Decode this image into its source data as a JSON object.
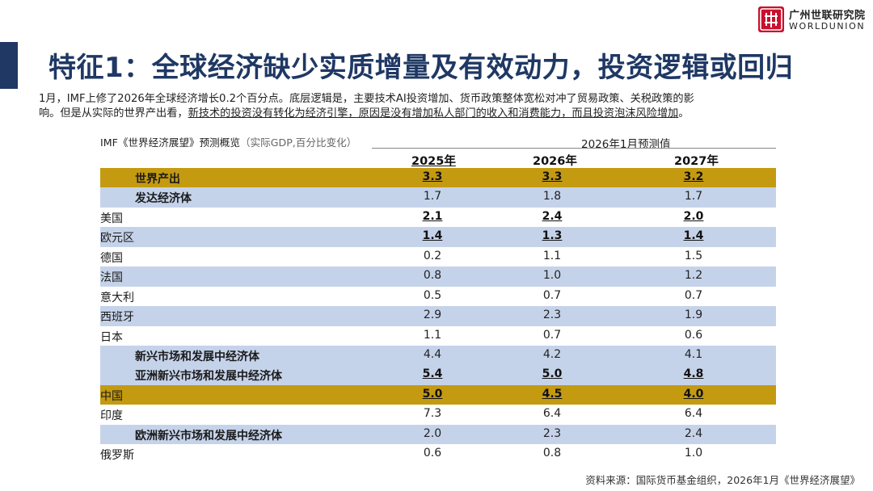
{
  "logo": {
    "name_cn": "广州世联研究院",
    "name_en": "WORLDUNION",
    "brand_color": "#c8102e"
  },
  "title": "特征1：全球经济缺少实质增量及有效动力，投资逻辑或回归",
  "description": {
    "line1": "1月，IMF上修了2026年全球经济增长0.2个百分点。底层逻辑是，主要技术AI投资增加、货币政策整体宽松对冲了贸易政策、关税政策的影",
    "line2_plain": "响。但是从实际的世界产出看，",
    "line2_underlined": "新技术的投资没有转化为经济引擎，原因是没有增加私人部门的收入和消费能力，而且投资泡沫风险增加"
  },
  "table": {
    "caption": "IMF《世界经济展望》预测概览",
    "caption_sub": "（实际GDP,百分比变化）",
    "group_header": "2026年1月预测值",
    "years": [
      "2025年",
      "2026年",
      "2027年"
    ],
    "rows": [
      {
        "label": "世界产出",
        "values": [
          "3.3",
          "3.3",
          "3.2"
        ],
        "style": "gold",
        "indent": true,
        "bold_label": true,
        "bold_values": true
      },
      {
        "label": "发达经济体",
        "values": [
          "1.7",
          "1.8",
          "1.7"
        ],
        "style": "blue",
        "indent": true,
        "bold_label": true,
        "bold_values": false
      },
      {
        "label": "美国",
        "values": [
          "2.1",
          "2.4",
          "2.0"
        ],
        "style": "white",
        "indent": false,
        "bold_label": false,
        "bold_values": true
      },
      {
        "label": "欧元区",
        "values": [
          "1.4",
          "1.3",
          "1.4"
        ],
        "style": "blue",
        "indent": false,
        "bold_label": false,
        "bold_values": true
      },
      {
        "label": "德国",
        "values": [
          "0.2",
          "1.1",
          "1.5"
        ],
        "style": "white",
        "indent": false,
        "bold_label": false,
        "bold_values": false
      },
      {
        "label": "法国",
        "values": [
          "0.8",
          "1.0",
          "1.2"
        ],
        "style": "blue",
        "indent": false,
        "bold_label": false,
        "bold_values": false
      },
      {
        "label": "意大利",
        "values": [
          "0.5",
          "0.7",
          "0.7"
        ],
        "style": "white",
        "indent": false,
        "bold_label": false,
        "bold_values": false
      },
      {
        "label": "西班牙",
        "values": [
          "2.9",
          "2.3",
          "1.9"
        ],
        "style": "blue",
        "indent": false,
        "bold_label": false,
        "bold_values": false
      },
      {
        "label": "日本",
        "values": [
          "1.1",
          "0.7",
          "0.6"
        ],
        "style": "white",
        "indent": false,
        "bold_label": false,
        "bold_values": false
      },
      {
        "label": "新兴市场和发展中经济体",
        "values": [
          "4.4",
          "4.2",
          "4.1"
        ],
        "style": "blue",
        "indent": true,
        "bold_label": true,
        "bold_values": false
      },
      {
        "label": "亚洲新兴市场和发展中经济体",
        "values": [
          "5.4",
          "5.0",
          "4.8"
        ],
        "style": "blue",
        "indent": true,
        "bold_label": true,
        "bold_values": true
      },
      {
        "label": "中国",
        "values": [
          "5.0",
          "4.5",
          "4.0"
        ],
        "style": "gold",
        "indent": false,
        "bold_label": false,
        "bold_values": true
      },
      {
        "label": "印度",
        "values": [
          "7.3",
          "6.4",
          "6.4"
        ],
        "style": "white",
        "indent": false,
        "bold_label": false,
        "bold_values": false
      },
      {
        "label": "欧洲新兴市场和发展中经济体",
        "values": [
          "2.0",
          "2.3",
          "2.4"
        ],
        "style": "blue",
        "indent": true,
        "bold_label": true,
        "bold_values": false
      },
      {
        "label": "俄罗斯",
        "values": [
          "0.6",
          "0.8",
          "1.0"
        ],
        "style": "white",
        "indent": false,
        "bold_label": false,
        "bold_values": false
      }
    ]
  },
  "source": "资料来源：国际货币基金组织，2026年1月《世界经济展望》",
  "colors": {
    "title": "#1f3864",
    "gold_row": "#c49a10",
    "blue_row": "#c5d3ea"
  }
}
